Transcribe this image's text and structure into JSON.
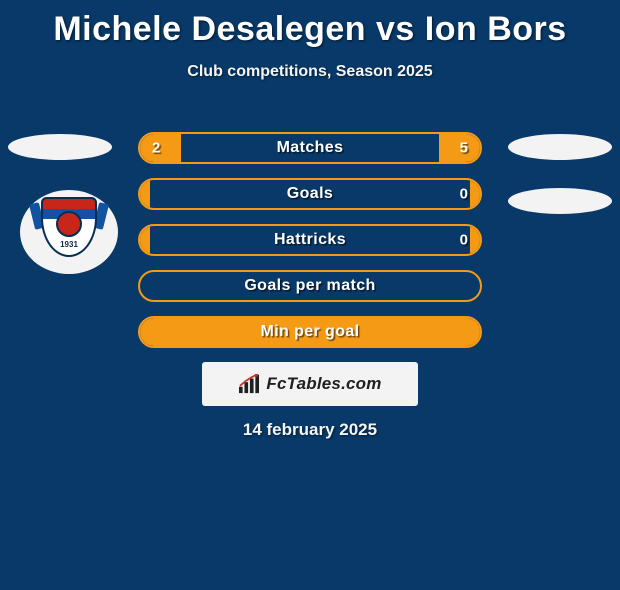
{
  "title": "Michele Desalegen vs Ion Bors",
  "subtitle": "Club competitions, Season 2025",
  "date": "14 february 2025",
  "brand": "FcTables.com",
  "crest": {
    "year": "1931",
    "band_top_color": "#c9261b",
    "band_mid_color": "#1252a0",
    "body_color": "#ffffff",
    "circle_color": "#c9261b",
    "outline_color": "#062d52"
  },
  "colors": {
    "background": "#083968",
    "pill_border": "#f59a15",
    "pill_fill": "#f59a15",
    "text_light": "#fefefe",
    "oval_bg": "#f3f3f3",
    "brand_box_bg": "#f3f3f3",
    "brand_text": "#202020"
  },
  "rows": [
    {
      "label": "Matches",
      "left": "2",
      "right": "5",
      "left_fill_pct": 12,
      "right_fill_pct": 12
    },
    {
      "label": "Goals",
      "left": "",
      "right": "0",
      "left_fill_pct": 3,
      "right_fill_pct": 3
    },
    {
      "label": "Hattricks",
      "left": "",
      "right": "0",
      "left_fill_pct": 3,
      "right_fill_pct": 3
    },
    {
      "label": "Goals per match",
      "left": "",
      "right": "",
      "left_fill_pct": 0,
      "right_fill_pct": 0
    },
    {
      "label": "Min per goal",
      "left": "",
      "right": "",
      "left_fill_pct": 100,
      "right_fill_pct": 0
    }
  ]
}
